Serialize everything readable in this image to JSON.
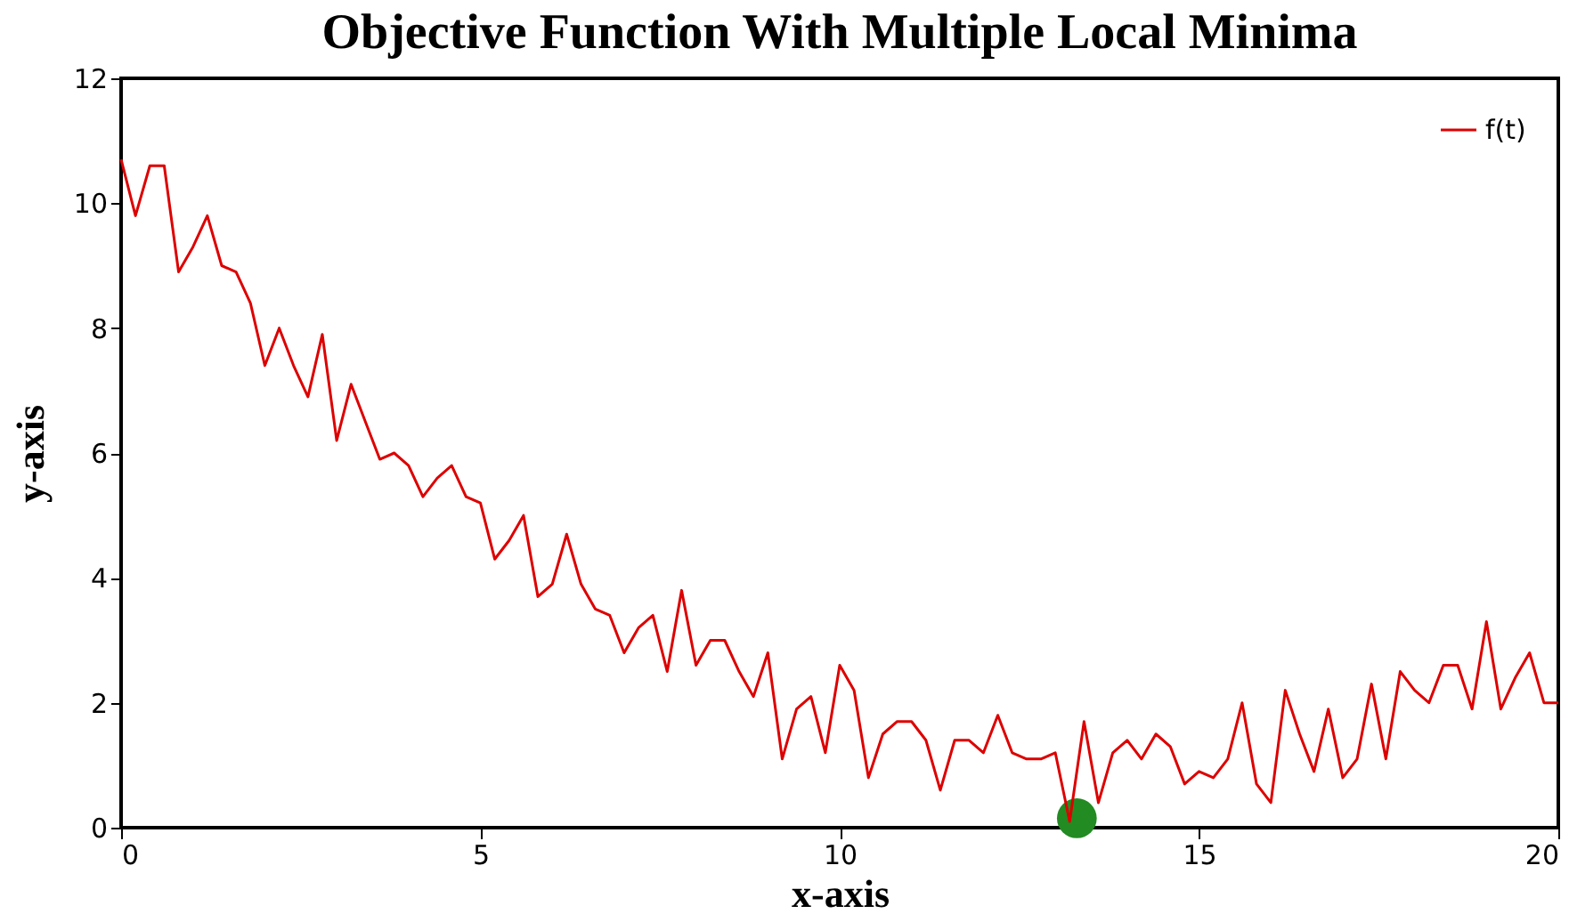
{
  "chart_data": {
    "type": "line",
    "title": "Objective Function With Multiple Local Minima",
    "xlabel": "x-axis",
    "ylabel": "y-axis",
    "xlim": [
      0,
      20
    ],
    "ylim": [
      0,
      12
    ],
    "xticks": [
      0,
      5,
      10,
      15,
      20
    ],
    "yticks": [
      0,
      2,
      4,
      6,
      8,
      10,
      12
    ],
    "grid": false,
    "legend": "top right",
    "marker": "none",
    "line_style": "solid",
    "series": [
      {
        "name": "f(t)",
        "color": "#dd0000",
        "x": [
          0,
          0.2,
          0.4,
          0.6,
          0.8,
          1.0,
          1.2,
          1.4,
          1.6,
          1.8,
          2.0,
          2.2,
          2.4,
          2.6,
          2.8,
          3.0,
          3.2,
          3.4,
          3.6,
          3.8,
          4.0,
          4.2,
          4.4,
          4.6,
          4.8,
          5.0,
          5.2,
          5.4,
          5.6,
          5.8,
          6.0,
          6.2,
          6.4,
          6.6,
          6.8,
          7.0,
          7.2,
          7.4,
          7.6,
          7.8,
          8.0,
          8.2,
          8.4,
          8.6,
          8.8,
          9.0,
          9.2,
          9.4,
          9.6,
          9.8,
          10.0,
          10.2,
          10.4,
          10.6,
          10.8,
          11.0,
          11.2,
          11.4,
          11.6,
          11.8,
          12.0,
          12.2,
          12.4,
          12.6,
          12.8,
          13.0,
          13.2,
          13.4,
          13.6,
          13.8,
          14.0,
          14.2,
          14.4,
          14.6,
          14.8,
          15.0,
          15.2,
          15.4,
          15.6,
          15.8,
          16.0,
          16.2,
          16.4,
          16.6,
          16.8,
          17.0,
          17.2,
          17.4,
          17.6,
          17.8,
          18.0,
          18.2,
          18.4,
          18.6,
          18.8,
          19.0,
          19.2,
          19.4,
          19.6,
          19.8,
          20.0
        ],
        "values": [
          10.7,
          9.8,
          10.6,
          10.6,
          8.9,
          9.3,
          9.8,
          9.0,
          8.9,
          8.4,
          7.4,
          8.0,
          7.4,
          6.9,
          7.9,
          6.2,
          7.1,
          6.5,
          5.9,
          6.0,
          5.8,
          5.3,
          5.6,
          5.8,
          5.3,
          5.2,
          4.3,
          4.6,
          5.0,
          3.7,
          3.9,
          4.7,
          3.9,
          3.5,
          3.4,
          2.8,
          3.2,
          3.4,
          2.5,
          3.8,
          2.6,
          3.0,
          3.0,
          2.5,
          2.1,
          2.8,
          1.1,
          1.9,
          2.1,
          1.2,
          2.6,
          2.2,
          0.8,
          1.5,
          1.7,
          1.7,
          1.4,
          0.6,
          1.4,
          1.4,
          1.2,
          1.8,
          1.2,
          1.1,
          1.1,
          1.2,
          0.1,
          1.7,
          0.4,
          1.2,
          1.4,
          1.1,
          1.5,
          1.3,
          0.7,
          0.9,
          0.8,
          1.1,
          2.0,
          0.7,
          0.4,
          2.2,
          1.5,
          0.9,
          1.9,
          0.8,
          1.1,
          2.3,
          1.1,
          2.5,
          2.2,
          2.0,
          2.6,
          2.6,
          1.9,
          3.3,
          1.9,
          2.4,
          2.8,
          2.0,
          2.0
        ]
      },
      {
        "color": "#228b22",
        "type": "scatter",
        "marker": "circle",
        "x": [
          13.3
        ],
        "values": [
          0.15
        ]
      }
    ]
  }
}
